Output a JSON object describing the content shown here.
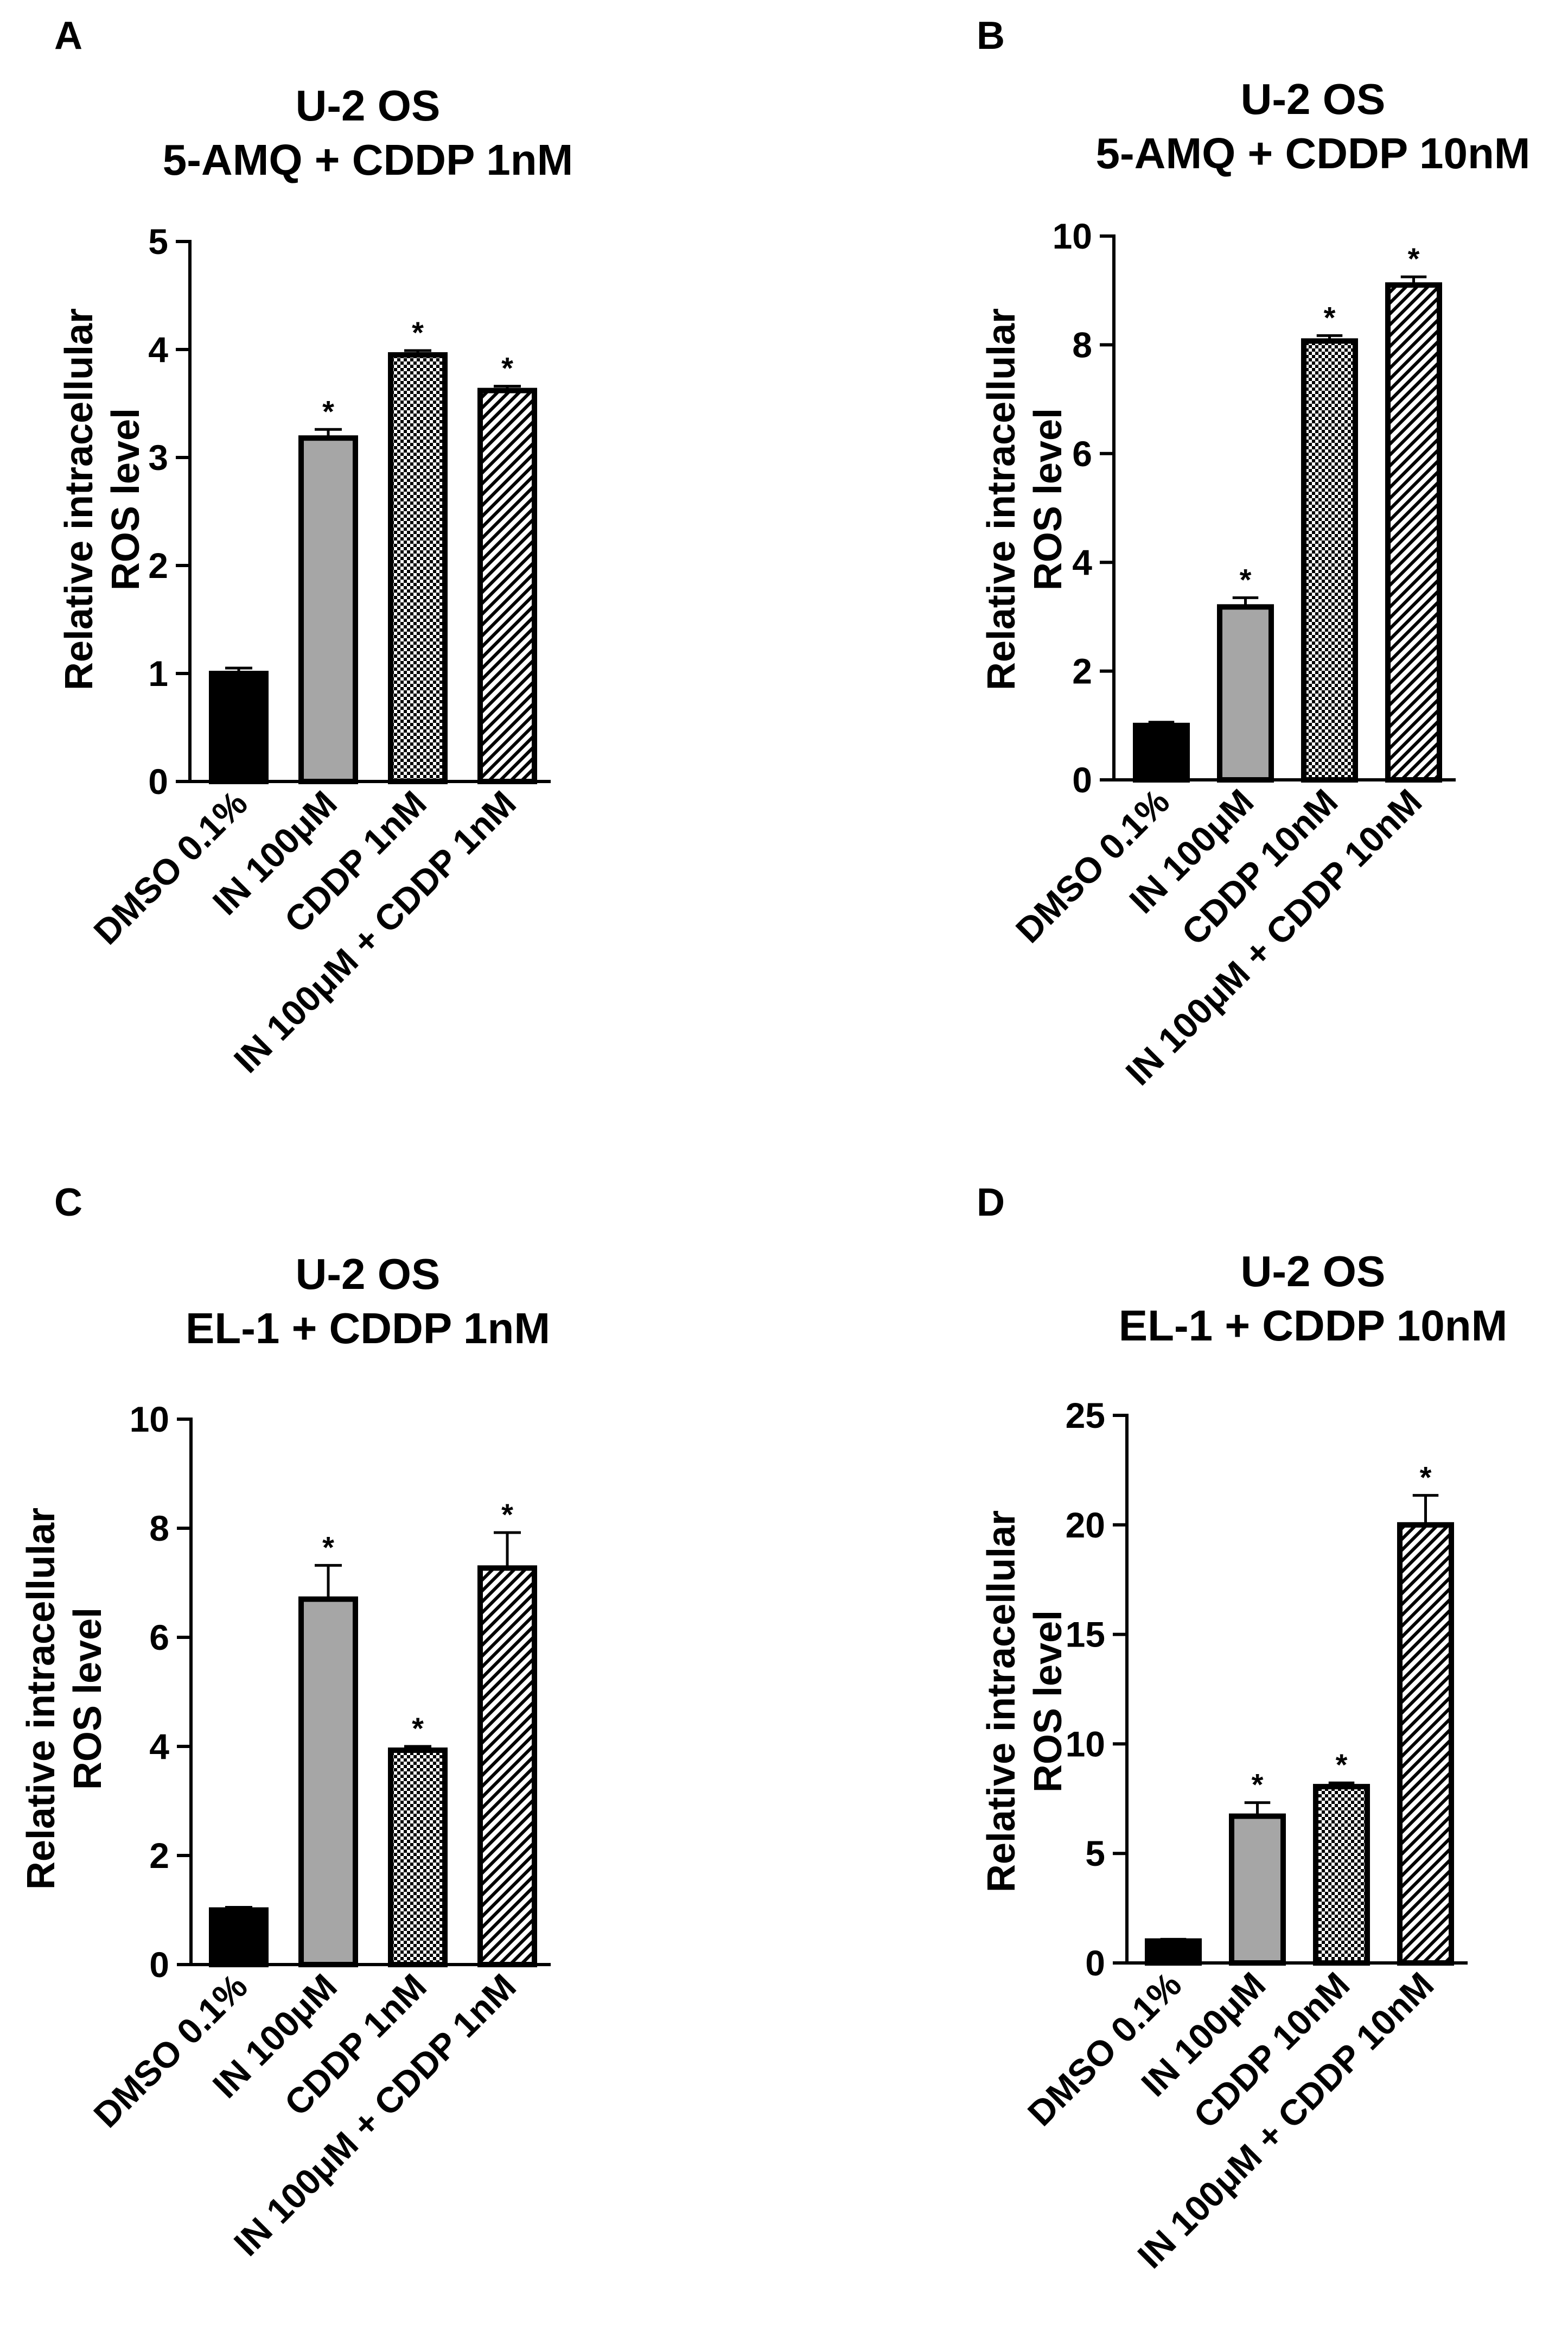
{
  "colors": {
    "dmso": "#000000",
    "in": "#a6a6a6",
    "cddp_pattern": "checker",
    "combo_pattern": "diagonal-hatch"
  },
  "chart_data": [
    {
      "panel": "A",
      "type": "bar",
      "title_line1": "U-2 OS",
      "title_line2": "5-AMQ + CDDP 1nM",
      "ylabel_line1": "Relative intracellular",
      "ylabel_line2": "ROS level",
      "categories": [
        "DMSO 0.1%",
        "IN 100μM",
        "CDDP 1nM",
        "IN 100μM + CDDP 1nM"
      ],
      "fills": [
        "solid-black",
        "solid-gray",
        "checker",
        "diagonal-hatch"
      ],
      "values": [
        1.0,
        3.18,
        3.95,
        3.62
      ],
      "errors": [
        0.05,
        0.08,
        0.04,
        0.04
      ],
      "significance": [
        "",
        "*",
        "*",
        "*"
      ],
      "ylim": [
        0,
        5
      ],
      "yticks": [
        0,
        1,
        2,
        3,
        4,
        5
      ]
    },
    {
      "panel": "B",
      "type": "bar",
      "title_line1": "U-2 OS",
      "title_line2": "5-AMQ + CDDP 10nM",
      "ylabel_line1": "Relative intracellular",
      "ylabel_line2": "ROS level",
      "categories": [
        "DMSO 0.1%",
        "IN 100μM",
        "CDDP 10nM",
        "IN 100μM + CDDP 10nM"
      ],
      "fills": [
        "solid-black",
        "solid-gray",
        "checker",
        "diagonal-hatch"
      ],
      "values": [
        1.0,
        3.18,
        8.07,
        9.1
      ],
      "errors": [
        0.06,
        0.17,
        0.1,
        0.15
      ],
      "significance": [
        "",
        "*",
        "*",
        "*"
      ],
      "ylim": [
        0,
        10
      ],
      "yticks": [
        0,
        2,
        4,
        6,
        8,
        10
      ]
    },
    {
      "panel": "C",
      "type": "bar",
      "title_line1": "U-2 OS",
      "title_line2": "EL-1 + CDDP 1nM",
      "ylabel_line1": "Relative intracellular",
      "ylabel_line2": "ROS level",
      "categories": [
        "DMSO 0.1%",
        "IN 100μM",
        "CDDP 1nM",
        "IN 100μM + CDDP 1nM"
      ],
      "fills": [
        "solid-black",
        "solid-gray",
        "checker",
        "diagonal-hatch"
      ],
      "values": [
        1.0,
        6.7,
        3.93,
        7.27
      ],
      "errors": [
        0.05,
        0.62,
        0.07,
        0.65
      ],
      "significance": [
        "",
        "*",
        "*",
        "*"
      ],
      "ylim": [
        0,
        10
      ],
      "yticks": [
        0,
        2,
        4,
        6,
        8,
        10
      ]
    },
    {
      "panel": "D",
      "type": "bar",
      "title_line1": "U-2 OS",
      "title_line2": "EL-1 + CDDP 10nM",
      "ylabel_line1": "Relative intracellular",
      "ylabel_line2": "ROS level",
      "categories": [
        "DMSO 0.1%",
        "IN 100μM",
        "CDDP 10nM",
        "IN 100μM + CDDP 10nM"
      ],
      "fills": [
        "solid-black",
        "solid-gray",
        "checker",
        "diagonal-hatch"
      ],
      "values": [
        1.0,
        6.7,
        8.05,
        20.0
      ],
      "errors": [
        0.08,
        0.62,
        0.17,
        1.35
      ],
      "significance": [
        "",
        "*",
        "*",
        "*"
      ],
      "ylim": [
        0,
        25
      ],
      "yticks": [
        0,
        5,
        10,
        15,
        20,
        25
      ]
    }
  ]
}
